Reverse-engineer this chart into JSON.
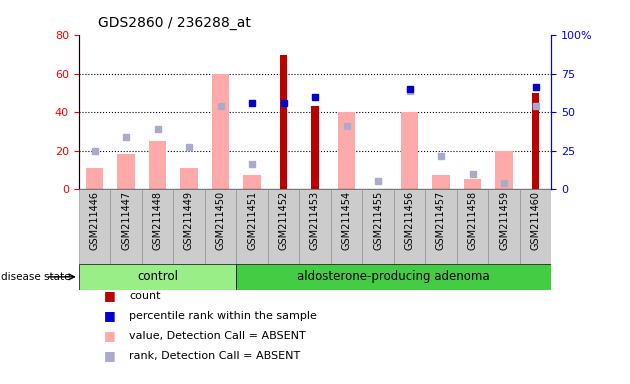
{
  "title": "GDS2860 / 236288_at",
  "samples": [
    "GSM211446",
    "GSM211447",
    "GSM211448",
    "GSM211449",
    "GSM211450",
    "GSM211451",
    "GSM211452",
    "GSM211453",
    "GSM211454",
    "GSM211455",
    "GSM211456",
    "GSM211457",
    "GSM211458",
    "GSM211459",
    "GSM211460"
  ],
  "n_control": 5,
  "n_adenoma": 10,
  "count": [
    0,
    0,
    0,
    0,
    0,
    0,
    70,
    43,
    0,
    0,
    0,
    0,
    0,
    0,
    50
  ],
  "percentile": [
    0,
    0,
    0,
    0,
    0,
    45,
    45,
    48,
    0,
    0,
    52,
    0,
    0,
    0,
    53
  ],
  "value_absent": [
    11,
    18,
    25,
    11,
    60,
    7,
    0,
    0,
    40,
    0,
    40,
    7,
    5,
    20,
    0
  ],
  "rank_absent": [
    20,
    27,
    31,
    22,
    43,
    13,
    0,
    0,
    33,
    4,
    51,
    17,
    8,
    3,
    43
  ],
  "ylim_left": [
    0,
    80
  ],
  "ylim_right": [
    0,
    100
  ],
  "yticks_left": [
    0,
    20,
    40,
    60,
    80
  ],
  "yticks_right": [
    0,
    25,
    50,
    75,
    100
  ],
  "color_count": "#bb0000",
  "color_percentile": "#0000cc",
  "color_value_absent": "#ffaaaa",
  "color_rank_absent": "#aaaacc",
  "color_control_bg": "#99ee88",
  "color_adenoma_bg": "#44cc44",
  "color_sample_bg": "#cccccc",
  "disease_label": "disease state",
  "group_control_label": "control",
  "group_adenoma_label": "aldosterone-producing adenoma",
  "legend": [
    {
      "text": "count",
      "color": "#bb0000"
    },
    {
      "text": "percentile rank within the sample",
      "color": "#0000cc"
    },
    {
      "text": "value, Detection Call = ABSENT",
      "color": "#ffaaaa"
    },
    {
      "text": "rank, Detection Call = ABSENT",
      "color": "#aaaacc"
    }
  ]
}
